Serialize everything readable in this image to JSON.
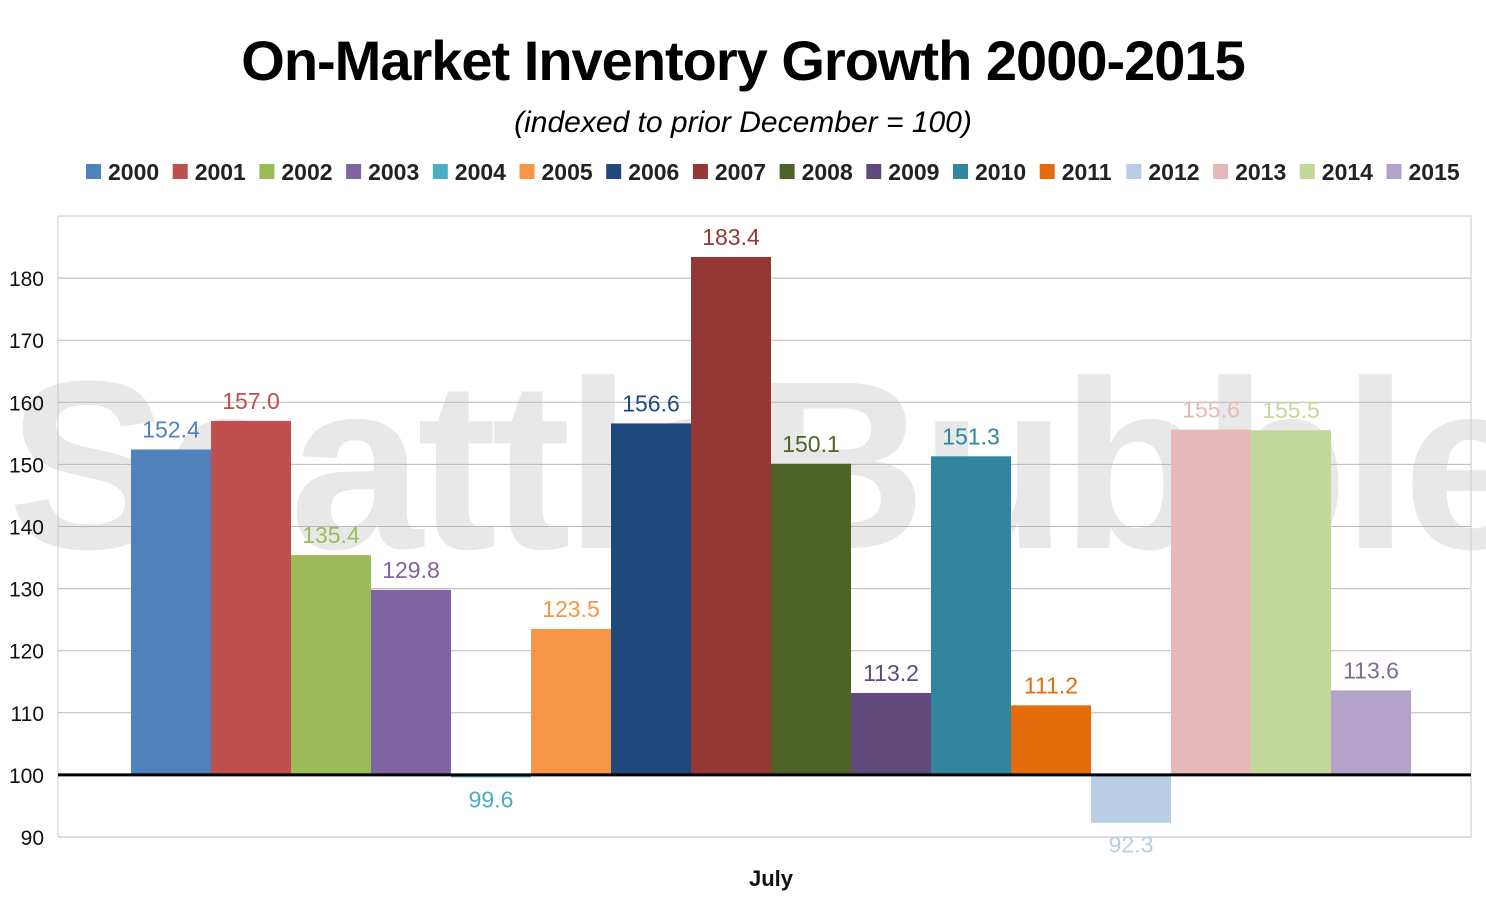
{
  "watermark": "SeattleBubble.com",
  "chart_data": {
    "type": "bar",
    "title": "On-Market Inventory Growth 2000-2015",
    "subtitle": "(indexed to prior December = 100)",
    "categories": [
      "July"
    ],
    "xlabel": "",
    "ylabel": "",
    "ylim": [
      90,
      190
    ],
    "yticks": [
      90,
      100,
      110,
      120,
      130,
      140,
      150,
      160,
      170,
      180
    ],
    "baseline": 100,
    "grid": true,
    "legend_position": "top",
    "series": [
      {
        "name": "2000",
        "values": [
          152.4
        ],
        "label": "152.4",
        "color": "#4f81bd",
        "label_color": "#4f81bd"
      },
      {
        "name": "2001",
        "values": [
          157.0
        ],
        "label": "157.0",
        "color": "#c0504d",
        "label_color": "#c0504d"
      },
      {
        "name": "2002",
        "values": [
          135.4
        ],
        "label": "135.4",
        "color": "#9bbb59",
        "label_color": "#9bbb59"
      },
      {
        "name": "2003",
        "values": [
          129.8
        ],
        "label": "129.8",
        "color": "#8064a2",
        "label_color": "#8064a2"
      },
      {
        "name": "2004",
        "values": [
          99.6
        ],
        "label": "99.6",
        "color": "#4bacc6",
        "label_color": "#4bacc6"
      },
      {
        "name": "2005",
        "values": [
          123.5
        ],
        "label": "123.5",
        "color": "#f79646",
        "label_color": "#f79646"
      },
      {
        "name": "2006",
        "values": [
          156.6
        ],
        "label": "156.6",
        "color": "#1f497d",
        "label_color": "#1f497d"
      },
      {
        "name": "2007",
        "values": [
          183.4
        ],
        "label": "183.4",
        "color": "#953735",
        "label_color": "#953735"
      },
      {
        "name": "2008",
        "values": [
          150.1
        ],
        "label": "150.1",
        "color": "#4f6228",
        "label_color": "#4f6228"
      },
      {
        "name": "2009",
        "values": [
          113.2
        ],
        "label": "113.2",
        "color": "#604a7b",
        "label_color": "#604a7b"
      },
      {
        "name": "2010",
        "values": [
          151.3
        ],
        "label": "151.3",
        "color": "#31859c",
        "label_color": "#31859c"
      },
      {
        "name": "2011",
        "values": [
          111.2
        ],
        "label": "111.2",
        "color": "#e46c0a",
        "label_color": "#e46c0a"
      },
      {
        "name": "2012",
        "values": [
          92.3
        ],
        "label": "92.3",
        "color": "#b9cde5",
        "label_color": "#b9cde5"
      },
      {
        "name": "2013",
        "values": [
          155.6
        ],
        "label": "155.6",
        "color": "#e6b9b8",
        "label_color": "#e6b9b8"
      },
      {
        "name": "2014",
        "values": [
          155.5
        ],
        "label": "155.5",
        "color": "#c4d79b",
        "label_color": "#c4d79b"
      },
      {
        "name": "2015",
        "values": [
          113.6
        ],
        "label": "113.6",
        "color": "#b3a2c7",
        "label_color": "#7f6a9a"
      }
    ]
  }
}
